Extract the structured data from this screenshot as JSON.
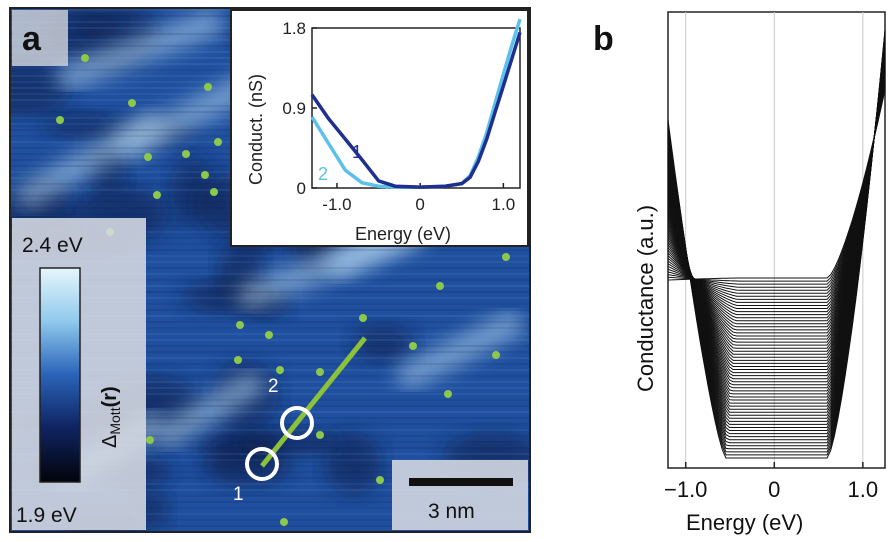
{
  "panel_a": {
    "label": "a",
    "colorbar": {
      "max_label": "2.4 eV",
      "min_label": "1.9 eV",
      "quantity": "Δ",
      "quantity_sub": "Mott",
      "quantity_arg": "(r)"
    },
    "scalebar_label": "3 nm",
    "point_labels": [
      "1",
      "2"
    ],
    "colors": {
      "map_base": "#1f4f9e",
      "map_dark": "#0d1d4a",
      "map_bright": "#b9dcf2",
      "dots": "#8cc84b",
      "linecut": "#8cc23a",
      "circles": "#ffffff"
    }
  },
  "inset": {
    "xlabel": "Energy (eV)",
    "ylabel": "Conduct. (nS)",
    "xticks": [
      "-1.0",
      "0",
      "1.0"
    ],
    "yticks": [
      "0",
      "0.9",
      "1.8"
    ],
    "series_labels": [
      "1",
      "2"
    ],
    "colors": {
      "curve1": "#1f2f8f",
      "curve2": "#5bc0ea"
    }
  },
  "panel_b": {
    "label": "b",
    "xlabel": "Energy (eV)",
    "ylabel": "Conductance (a.u.)",
    "xticks": [
      "−1.0",
      "0",
      "1.0"
    ]
  },
  "chart_data": [
    {
      "type": "line",
      "xlim": [
        -1.3,
        1.2
      ],
      "ylim": [
        0,
        1.8
      ],
      "series": [
        {
          "name": "1",
          "color": "#1f2f8f",
          "x": [
            -1.3,
            -1.1,
            -0.9,
            -0.7,
            -0.5,
            -0.3,
            0.0,
            0.3,
            0.5,
            0.6,
            0.7,
            0.8,
            0.9,
            1.0,
            1.1,
            1.2
          ],
          "y": [
            1.05,
            0.78,
            0.55,
            0.32,
            0.08,
            0.02,
            0.01,
            0.02,
            0.05,
            0.12,
            0.3,
            0.55,
            0.85,
            1.15,
            1.45,
            1.75
          ]
        },
        {
          "name": "2",
          "color": "#5bc0ea",
          "x": [
            -1.3,
            -1.1,
            -0.9,
            -0.7,
            -0.5,
            -0.3,
            0.0,
            0.3,
            0.5,
            0.6,
            0.7,
            0.8,
            0.9,
            1.0,
            1.1,
            1.2
          ],
          "y": [
            0.8,
            0.5,
            0.2,
            0.06,
            0.02,
            0.01,
            0.01,
            0.02,
            0.05,
            0.14,
            0.35,
            0.62,
            0.95,
            1.28,
            1.6,
            1.9
          ]
        }
      ]
    },
    {
      "type": "line",
      "xlim": [
        -1.2,
        1.25
      ],
      "grid_x": [
        -1.0,
        0.0,
        1.0
      ],
      "series_count": 60
    }
  ]
}
